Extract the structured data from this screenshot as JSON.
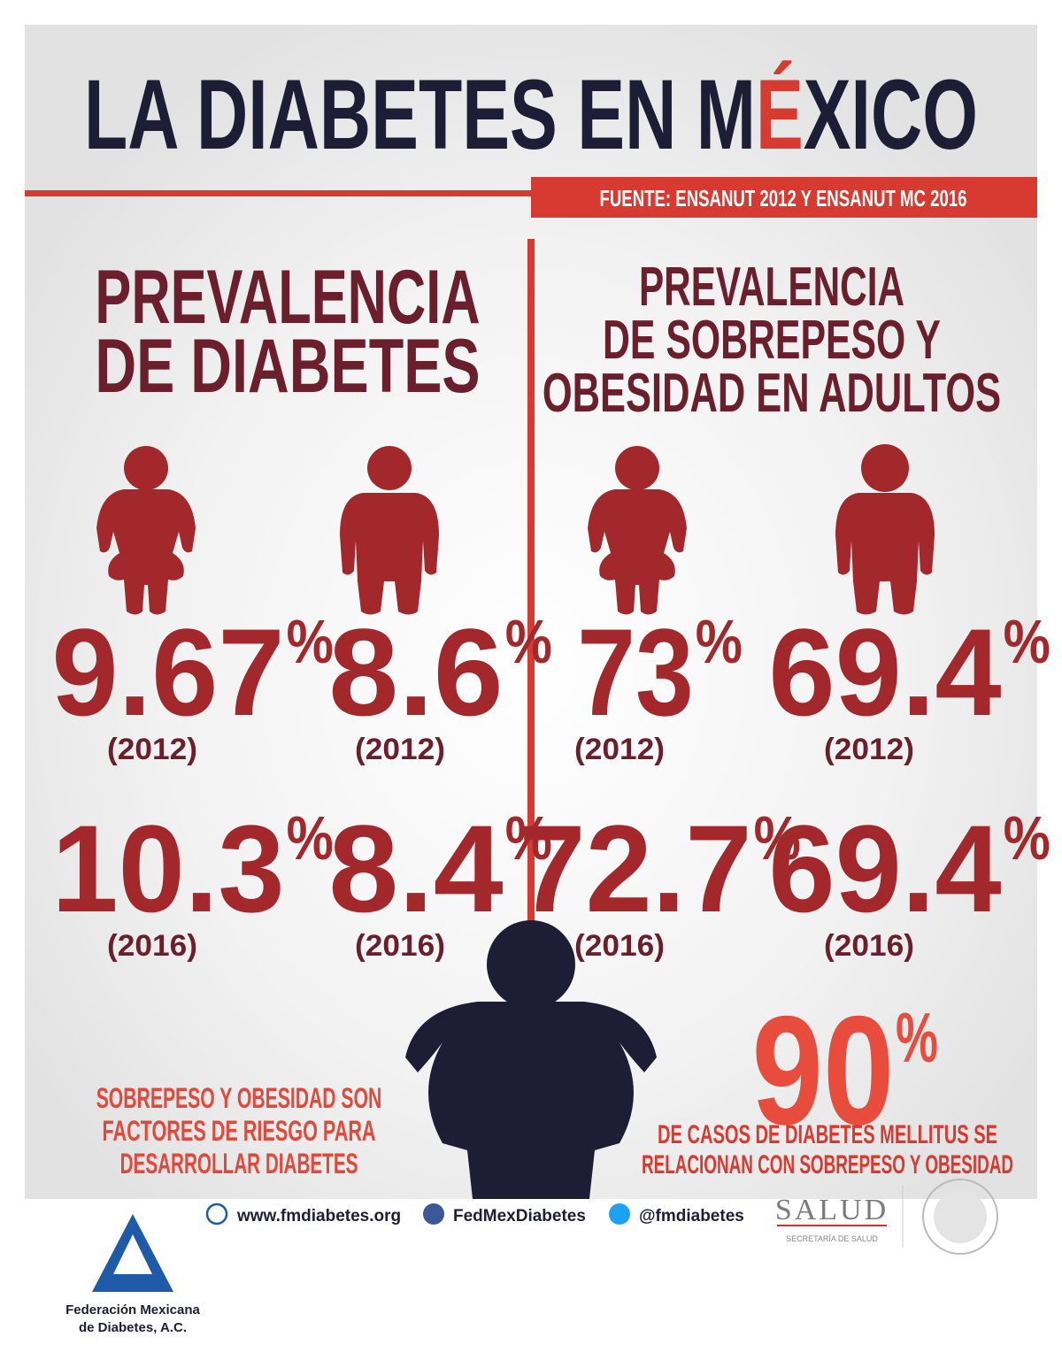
{
  "header": {
    "title_parts": [
      "LA DIABETES EN M",
      "É",
      "XICO"
    ],
    "source": "FUENTE: ENSANUT 2012 Y ENSANUT MC 2016"
  },
  "diabetes": {
    "heading": [
      "PREVALENCIA",
      "DE DIABETES"
    ],
    "women": [
      {
        "value": "9.67",
        "unit": "%",
        "year": "(2012)"
      },
      {
        "value": "10.3",
        "unit": "%",
        "year": "(2016)"
      }
    ],
    "men": [
      {
        "value": "8.6",
        "unit": "%",
        "year": "(2012)"
      },
      {
        "value": "8.4",
        "unit": "%",
        "year": "(2016)"
      }
    ]
  },
  "overweight": {
    "heading": [
      "PREVALENCIA",
      "DE SOBREPESO Y",
      "OBESIDAD EN ADULTOS"
    ],
    "women": [
      {
        "value": "73",
        "unit": "%",
        "year": "(2012)"
      },
      {
        "value": "72.7",
        "unit": "%",
        "year": "(2016)"
      }
    ],
    "men": [
      {
        "value": "69.4",
        "unit": "%",
        "year": "(2012)"
      },
      {
        "value": "69.4",
        "unit": "%",
        "year": "(2016)"
      }
    ]
  },
  "risk_note": [
    "SOBREPESO Y OBESIDAD SON",
    "FACTORES DE RIESGO PARA",
    "DESARROLLAR DIABETES"
  ],
  "highlight": {
    "value": "90",
    "unit": "%",
    "text": [
      "DE CASOS DE DIABETES MELLITUS SE",
      "RELACIONAN CON SOBREPESO Y OBESIDAD"
    ]
  },
  "footer": {
    "organization": [
      "Federación Mexicana",
      "de Diabetes, A.C."
    ],
    "website": "www.fmdiabetes.org",
    "facebook": "FedMexDiabetes",
    "twitter": "@fmdiabetes",
    "agency": "SALUD",
    "agency_subtitle": "SECRETARÍA DE SALUD"
  }
}
